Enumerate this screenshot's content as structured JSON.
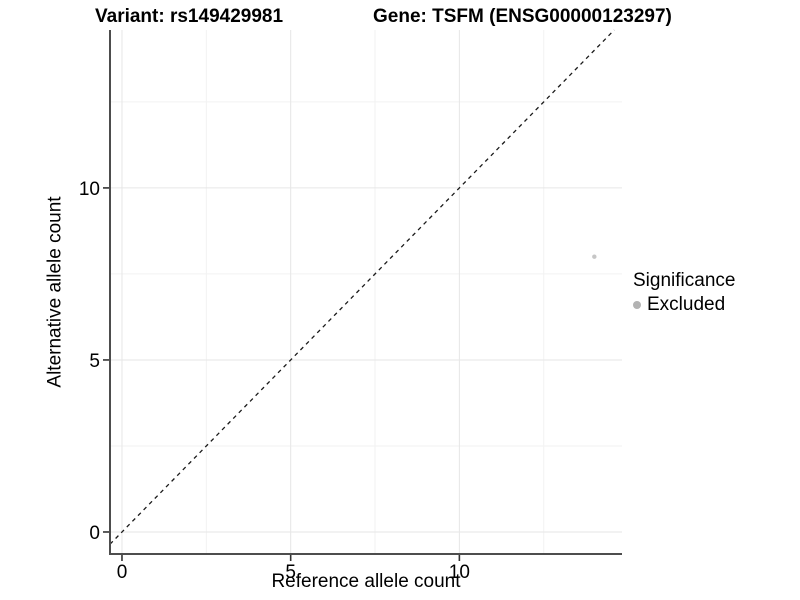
{
  "chart_data": {
    "type": "scatter",
    "titles": {
      "left": "Variant: rs149429981",
      "right": "Gene: TSFM (ENSG00000123297)"
    },
    "xlabel": "Reference allele count",
    "ylabel": "Alternative allele count",
    "x_ticks": [
      0,
      5,
      10
    ],
    "y_ticks": [
      0,
      5,
      10
    ],
    "x_minor_ticks": [
      2.5,
      7.5,
      12.5
    ],
    "y_minor_ticks": [
      2.5,
      7.5,
      12.5
    ],
    "xlim": [
      -0.355,
      14.82
    ],
    "ylim": [
      -0.64,
      14.59
    ],
    "grid": true,
    "legend": {
      "title": "Significance",
      "position": "right",
      "entries": [
        {
          "label": "Excluded",
          "color": "#b3b3b3"
        }
      ]
    },
    "points": [
      {
        "x": 14,
        "y": 8,
        "series": "Excluded"
      }
    ],
    "reference_line": {
      "type": "identity",
      "style": "dashed",
      "slope": 1,
      "intercept": 0
    },
    "colors": {
      "point": "#c6c6c6",
      "grid_major": "#e6e6e6",
      "grid_minor": "#f2f2f2",
      "axis": "#4d4d4d",
      "tick": "#333333",
      "dashed_line": "#1a1a1a",
      "text": "#000000"
    }
  }
}
